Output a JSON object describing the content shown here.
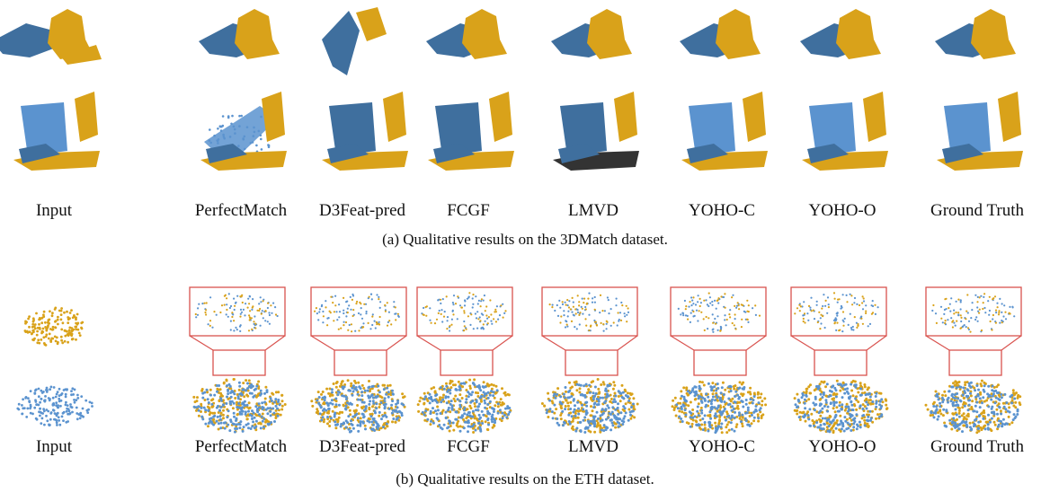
{
  "panel_a": {
    "methods": [
      "Input",
      "PerfectMatch",
      "D3Feat-pred",
      "FCGF",
      "LMVD",
      "YOHO-C",
      "YOHO-O",
      "Ground Truth"
    ],
    "caption": "(a) Qualitative results on the 3DMatch dataset."
  },
  "panel_b": {
    "methods": [
      "Input",
      "PerfectMatch",
      "D3Feat-pred",
      "FCGF",
      "LMVD",
      "YOHO-C",
      "YOHO-O",
      "Ground Truth"
    ],
    "caption": "(b) Qualitative results on the ETH dataset."
  },
  "colors": {
    "source_blue": "#3f6f9e",
    "source_light_blue": "#5b93cf",
    "target_gold": "#d9a21a",
    "zoom_box_red": "#d9534f"
  }
}
